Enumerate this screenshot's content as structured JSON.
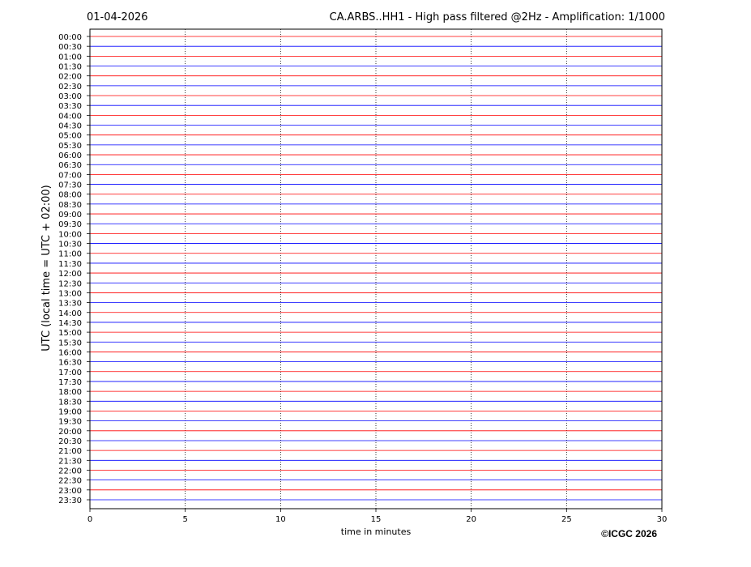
{
  "chart_data": {
    "type": "helicorder",
    "date": "01-04-2026",
    "title": "CA.ARBS..HH1 - High pass filtered @2Hz - Amplification: 1/1000",
    "xlabel": "time in minutes",
    "ylabel": "UTC (local time = UTC + 02:00)",
    "credit": "©ICGC 2026",
    "categories": [
      "00:00",
      "00:30",
      "01:00",
      "01:30",
      "02:00",
      "02:30",
      "03:00",
      "03:30",
      "04:00",
      "04:30",
      "05:00",
      "05:30",
      "06:00",
      "06:30",
      "07:00",
      "07:30",
      "08:00",
      "08:30",
      "09:00",
      "09:30",
      "10:00",
      "10:30",
      "11:00",
      "11:30",
      "12:00",
      "12:30",
      "13:00",
      "13:30",
      "14:00",
      "14:30",
      "15:00",
      "15:30",
      "16:00",
      "16:30",
      "17:00",
      "17:30",
      "18:00",
      "18:30",
      "19:00",
      "19:30",
      "20:00",
      "20:30",
      "21:00",
      "21:30",
      "22:00",
      "22:30",
      "23:00",
      "23:30"
    ],
    "colors": [
      "#ff0000",
      "#0000ff"
    ],
    "xlim": [
      0,
      30
    ],
    "xticks": [
      0,
      5,
      10,
      15,
      20,
      25,
      30
    ],
    "grid": true
  }
}
